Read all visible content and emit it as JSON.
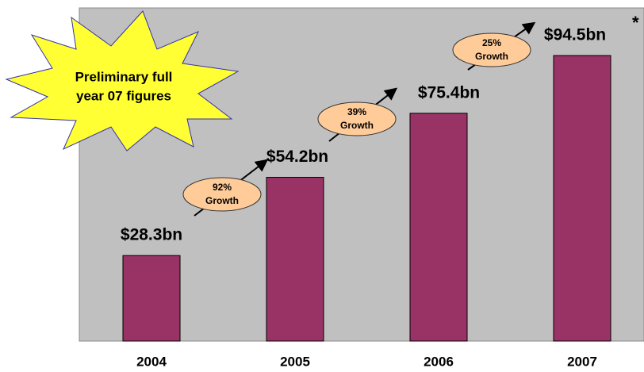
{
  "chart_data": {
    "type": "bar",
    "categories": [
      "2004",
      "2005",
      "2006",
      "2007"
    ],
    "values": [
      28.3,
      54.2,
      75.4,
      94.5
    ],
    "value_labels": [
      "$28.3bn",
      "$54.2bn",
      "$75.4bn",
      "$94.5bn"
    ],
    "color": "#993366",
    "growth": {
      "values": [
        92,
        39,
        25
      ],
      "value_labels": [
        "92%",
        "39%",
        "25%"
      ],
      "label": "Growth"
    },
    "footnote_mark": "*",
    "callout": [
      "Preliminary full",
      "year 07 figures"
    ]
  }
}
